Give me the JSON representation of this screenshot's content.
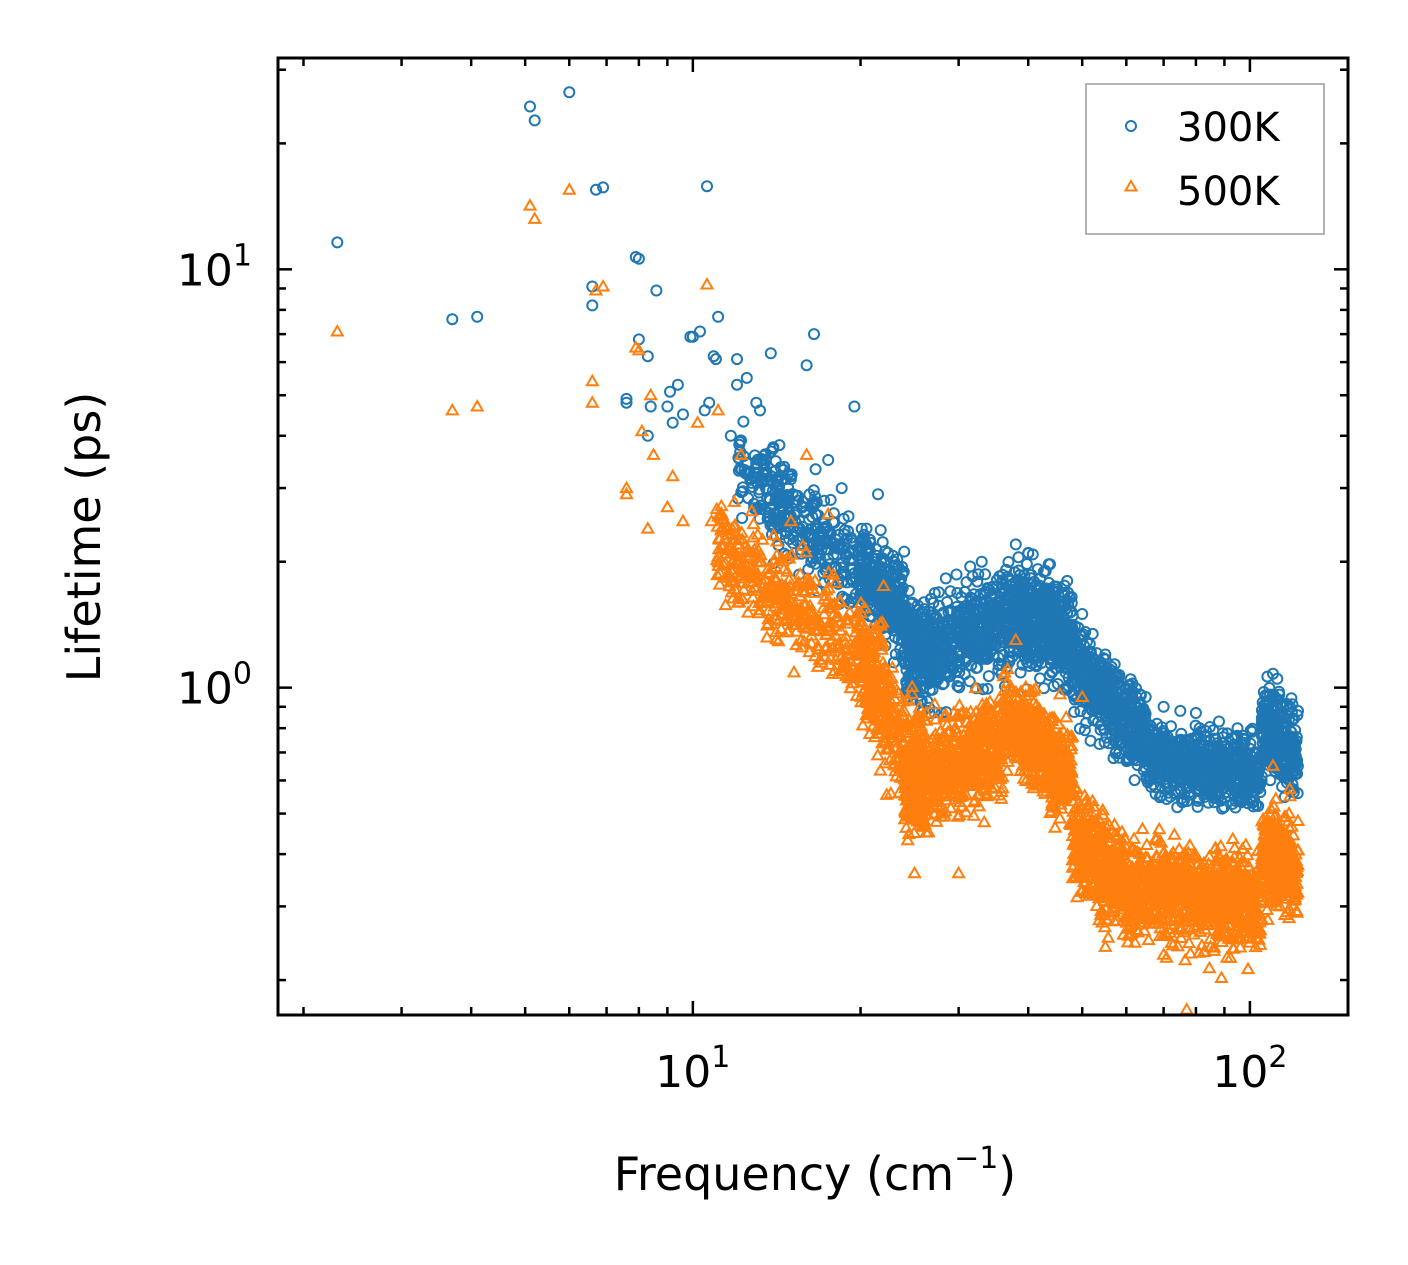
{
  "chart_data": {
    "type": "scatter",
    "xscale": "log",
    "yscale": "log",
    "xlim": [
      1.8,
      150
    ],
    "ylim": [
      0.165,
      32
    ],
    "xlabel": {
      "main": "Frequency (cm",
      "sup": "−1",
      "close": ")"
    },
    "ylabel": "Lifetime (ps)",
    "xticks": [
      {
        "base": "10",
        "exp": "1",
        "value": 10
      },
      {
        "base": "10",
        "exp": "2",
        "value": 100
      }
    ],
    "yticks": [
      {
        "base": "10",
        "exp": "0",
        "value": 1
      },
      {
        "base": "10",
        "exp": "1",
        "value": 10
      }
    ],
    "legend": {
      "position": "top-right"
    },
    "series": [
      {
        "name": "300K",
        "marker": "circle",
        "color": "#1f77b4",
        "points": [
          [
            2.3,
            11.6
          ],
          [
            3.7,
            7.6
          ],
          [
            4.1,
            7.7
          ],
          [
            5.1,
            24.5
          ],
          [
            5.2,
            22.7
          ],
          [
            6.0,
            26.5
          ],
          [
            6.6,
            8.2
          ],
          [
            6.6,
            9.1
          ],
          [
            6.7,
            15.5
          ],
          [
            6.9,
            15.7
          ],
          [
            7.6,
            4.8
          ],
          [
            7.6,
            4.9
          ],
          [
            7.9,
            10.7
          ],
          [
            8.0,
            10.6
          ],
          [
            8.0,
            6.8
          ],
          [
            8.3,
            6.2
          ],
          [
            8.3,
            4.0
          ],
          [
            8.4,
            4.7
          ],
          [
            8.6,
            8.9
          ],
          [
            9.0,
            4.7
          ],
          [
            9.1,
            5.1
          ],
          [
            9.2,
            4.3
          ],
          [
            9.4,
            5.3
          ],
          [
            9.6,
            4.5
          ],
          [
            9.9,
            6.9
          ],
          [
            10.0,
            6.9
          ],
          [
            10.3,
            7.1
          ],
          [
            10.5,
            4.6
          ],
          [
            10.6,
            15.8
          ],
          [
            10.7,
            4.8
          ],
          [
            10.9,
            6.2
          ],
          [
            11.0,
            6.1
          ],
          [
            11.1,
            7.7
          ],
          [
            11.7,
            4.0
          ],
          [
            12.0,
            5.3
          ],
          [
            12.0,
            6.1
          ],
          [
            12.2,
            3.9
          ],
          [
            12.5,
            5.5
          ],
          [
            13.0,
            4.8
          ],
          [
            13.2,
            4.6
          ],
          [
            13.5,
            3.5
          ],
          [
            13.8,
            6.3
          ],
          [
            14.3,
            3.8
          ],
          [
            15.0,
            3.2
          ],
          [
            16.0,
            5.9
          ],
          [
            16.5,
            7.0
          ],
          [
            17.5,
            3.5
          ],
          [
            18.5,
            3.0
          ],
          [
            19.5,
            4.7
          ],
          [
            20.5,
            2.4
          ],
          [
            21.5,
            2.9
          ],
          [
            23.0,
            2.0
          ],
          [
            26.0,
            1.6
          ],
          [
            29.0,
            1.7
          ],
          [
            33.0,
            2.0
          ],
          [
            38.0,
            2.2
          ],
          [
            40.0,
            2.1
          ],
          [
            43.0,
            1.9
          ],
          [
            47.0,
            1.8
          ],
          [
            50.0,
            1.5
          ],
          [
            55.0,
            1.2
          ],
          [
            60.0,
            0.96
          ],
          [
            65.0,
            0.95
          ],
          [
            70.0,
            0.9
          ],
          [
            75.0,
            0.88
          ],
          [
            80.0,
            0.87
          ],
          [
            88.0,
            0.83
          ],
          [
            95.0,
            0.8
          ],
          [
            110.0,
            1.08
          ],
          [
            112.0,
            1.05
          ],
          [
            118.0,
            0.9
          ],
          [
            122.0,
            0.88
          ]
        ],
        "bands": [
          {
            "x": [
              12.0,
              24.0
            ],
            "y": [
              3.3,
              1.6
            ],
            "spread": 1.3,
            "count": 450
          },
          {
            "x": [
              20.0,
              27.0
            ],
            "y": [
              1.9,
              1.2
            ],
            "spread": 1.25,
            "count": 300
          },
          {
            "x": [
              24.0,
              38.0
            ],
            "y": [
              1.15,
              1.5
            ],
            "spread": 1.3,
            "count": 600
          },
          {
            "x": [
              38.0,
              48.0
            ],
            "y": [
              1.5,
              1.3
            ],
            "spread": 1.3,
            "count": 500
          },
          {
            "x": [
              48.0,
              65.0
            ],
            "y": [
              1.15,
              0.75
            ],
            "spread": 1.25,
            "count": 500
          },
          {
            "x": [
              65.0,
              105.0
            ],
            "y": [
              0.68,
              0.62
            ],
            "spread": 1.2,
            "count": 700
          },
          {
            "x": [
              105.0,
              122.0
            ],
            "y": [
              0.8,
              0.7
            ],
            "spread": 1.25,
            "count": 300
          }
        ]
      },
      {
        "name": "500K",
        "marker": "triangle",
        "color": "#ff7f0e",
        "points": [
          [
            2.3,
            7.1
          ],
          [
            3.7,
            4.6
          ],
          [
            4.1,
            4.7
          ],
          [
            5.1,
            14.2
          ],
          [
            5.2,
            13.2
          ],
          [
            6.0,
            15.5
          ],
          [
            6.6,
            5.4
          ],
          [
            6.6,
            4.8
          ],
          [
            6.7,
            8.9
          ],
          [
            6.9,
            9.1
          ],
          [
            7.6,
            2.9
          ],
          [
            7.6,
            3.0
          ],
          [
            7.9,
            6.5
          ],
          [
            8.0,
            6.4
          ],
          [
            8.1,
            4.1
          ],
          [
            8.3,
            2.4
          ],
          [
            8.4,
            5.0
          ],
          [
            8.5,
            3.6
          ],
          [
            9.0,
            2.7
          ],
          [
            9.2,
            3.2
          ],
          [
            9.6,
            2.5
          ],
          [
            10.2,
            4.3
          ],
          [
            10.6,
            9.2
          ],
          [
            10.8,
            2.5
          ],
          [
            11.1,
            4.6
          ],
          [
            12.0,
            2.2
          ],
          [
            12.2,
            3.6
          ],
          [
            13.0,
            2.1
          ],
          [
            13.5,
            1.7
          ],
          [
            15.0,
            2.5
          ],
          [
            16.0,
            3.6
          ],
          [
            17.5,
            2.6
          ],
          [
            22.0,
            1.75
          ],
          [
            25.0,
            0.36
          ],
          [
            30.0,
            0.36
          ],
          [
            38.0,
            1.3
          ],
          [
            50.0,
            0.95
          ],
          [
            55.0,
            0.24
          ],
          [
            60.0,
            0.3
          ],
          [
            70.0,
            0.23
          ],
          [
            77.0,
            0.17
          ],
          [
            85.0,
            0.24
          ],
          [
            95.0,
            0.25
          ],
          [
            110.0,
            0.65
          ],
          [
            118.0,
            0.55
          ],
          [
            122.0,
            0.48
          ]
        ],
        "bands": [
          {
            "x": [
              11.0,
              22.0
            ],
            "y": [
              2.2,
              1.1
            ],
            "spread": 1.3,
            "count": 450
          },
          {
            "x": [
              20.0,
              26.0
            ],
            "y": [
              1.1,
              0.6
            ],
            "spread": 1.35,
            "count": 300
          },
          {
            "x": [
              24.0,
              36.0
            ],
            "y": [
              0.58,
              0.72
            ],
            "spread": 1.3,
            "count": 700
          },
          {
            "x": [
              36.0,
              48.0
            ],
            "y": [
              0.85,
              0.62
            ],
            "spread": 1.3,
            "count": 500
          },
          {
            "x": [
              48.0,
              62.0
            ],
            "y": [
              0.45,
              0.32
            ],
            "spread": 1.3,
            "count": 500
          },
          {
            "x": [
              62.0,
              105.0
            ],
            "y": [
              0.33,
              0.3
            ],
            "spread": 1.3,
            "count": 800
          },
          {
            "x": [
              105.0,
              122.0
            ],
            "y": [
              0.4,
              0.38
            ],
            "spread": 1.3,
            "count": 300
          }
        ]
      }
    ]
  }
}
